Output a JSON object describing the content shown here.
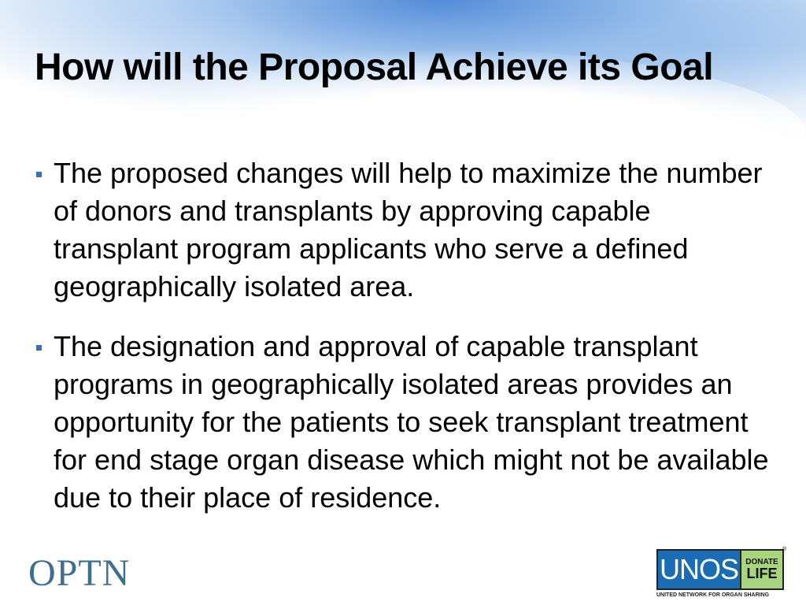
{
  "slide": {
    "title": "How will the Proposal Achieve its Goal",
    "bullets": [
      "The proposed changes will help to maximize the number of donors and transplants by approving capable transplant program applicants who serve a defined geographically isolated area.",
      "The designation and approval of capable transplant programs in geographically isolated areas provides an opportunity for the patients to seek transplant treatment for end stage organ disease which might not be available due to their place of residence."
    ]
  },
  "footer": {
    "optn_logo": "OPTN",
    "unos_logo": {
      "main": "UNOS",
      "donate": "DONATE",
      "life": "LIFE",
      "registered": "®",
      "subtitle": "UNITED NETWORK FOR ORGAN SHARING"
    }
  },
  "colors": {
    "bullet": "#3b6fb0",
    "optn": "#3f6f8f",
    "unos_blue": "#1a6db3",
    "donate_life_green": "#a9d57f"
  }
}
